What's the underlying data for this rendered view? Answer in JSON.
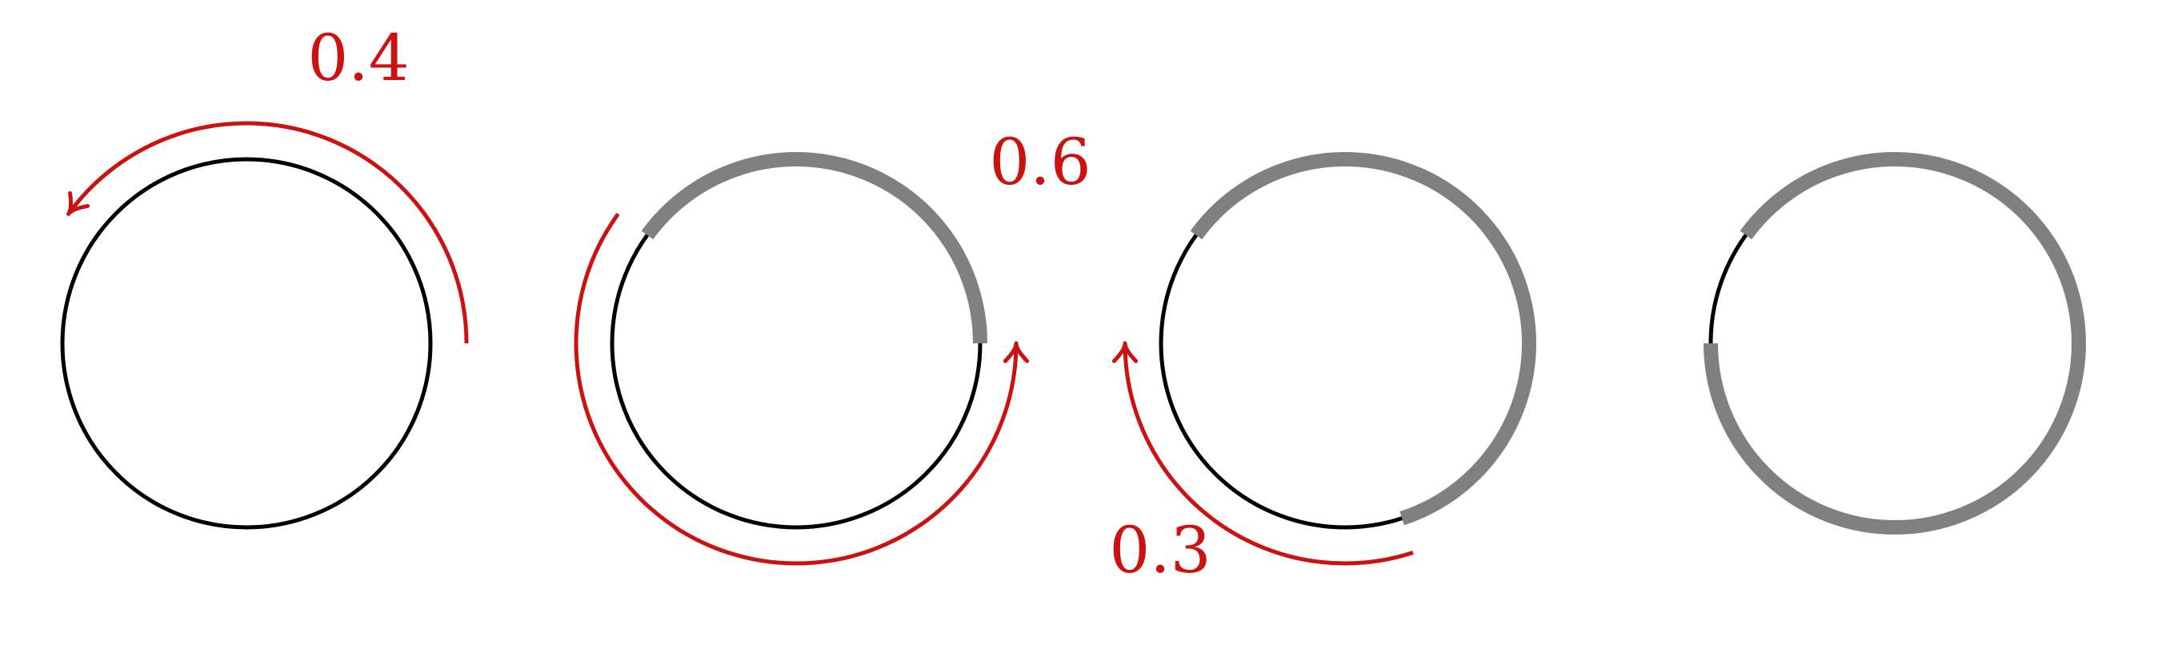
{
  "colors": {
    "circle": "#000000",
    "covered": "#808080",
    "arrow": "#cc1111",
    "background": "#ffffff"
  },
  "panels": [
    {
      "name": "panel-1",
      "covered": [],
      "arrow": {
        "from": 0,
        "to": 0.4,
        "direction": "counterclockwise"
      },
      "label": "0.4"
    },
    {
      "name": "panel-2",
      "covered": [
        [
          0,
          0.4
        ]
      ],
      "arrow": {
        "from": 0.4,
        "to": 1.0,
        "direction": "counterclockwise"
      },
      "label": "0.6"
    },
    {
      "name": "panel-3",
      "covered": [
        [
          0,
          0.4
        ],
        [
          0.8,
          1.0
        ]
      ],
      "arrow": {
        "from": 0.8,
        "to": 0.5,
        "direction": "clockwise"
      },
      "label": "0.3"
    },
    {
      "name": "panel-4",
      "covered": [
        [
          0,
          0.4
        ],
        [
          0.5,
          1.0
        ]
      ],
      "arrow": null,
      "label": ""
    }
  ]
}
